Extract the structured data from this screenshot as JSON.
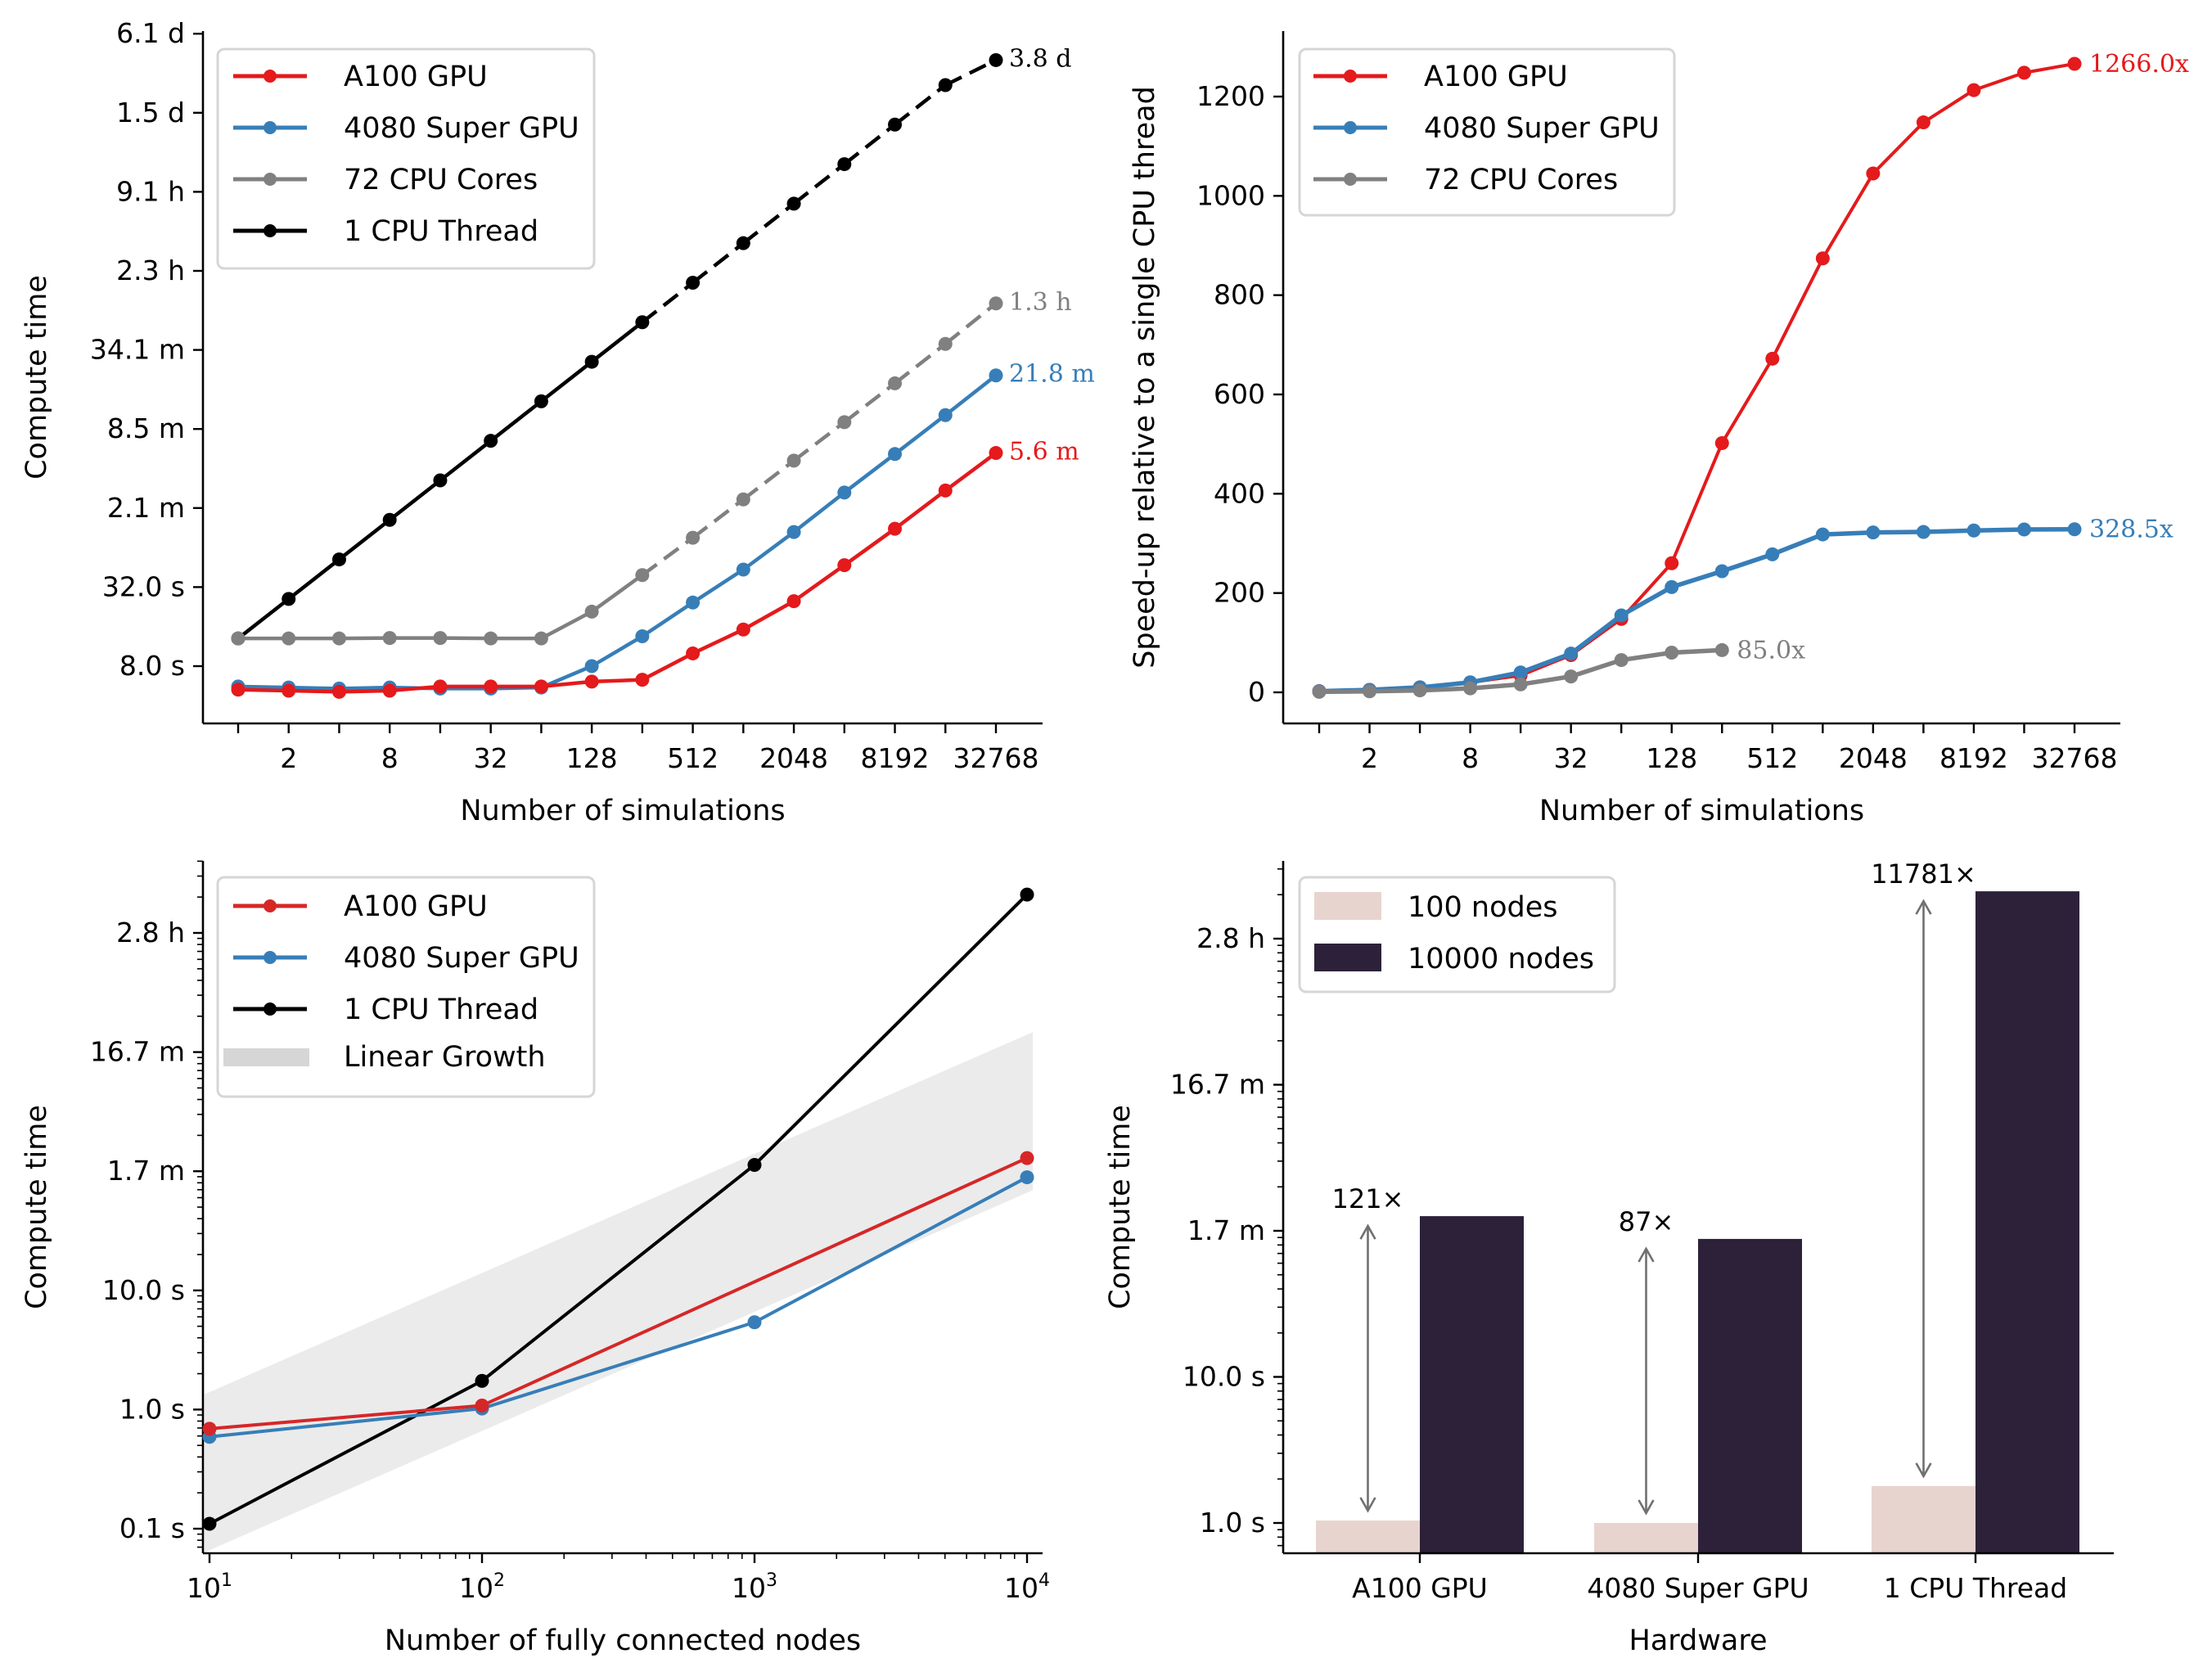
{
  "colors": {
    "a100": "#e41a1c",
    "rtx4080": "#377eb8",
    "cpu72": "#808080",
    "cpu1": "#000000",
    "a100_alt": "#d62728",
    "bar_100": "#e8d4cf",
    "bar_10000": "#2d2139",
    "band": "#ebebeb",
    "legend_border": "#d6d6d6",
    "arrow": "#707070"
  },
  "chart_data": [
    {
      "id": "compute-time-vs-simulations",
      "type": "line",
      "title": "",
      "xlabel": "Number of simulations",
      "ylabel": "Compute time",
      "xscale": "log2",
      "yscale": "log4",
      "x": [
        1,
        2,
        4,
        8,
        16,
        32,
        64,
        128,
        256,
        512,
        1024,
        2048,
        4096,
        8192,
        16384,
        32768
      ],
      "xticks": [
        2,
        8,
        32,
        128,
        512,
        2048,
        8192,
        32768
      ],
      "xtick_labels": [
        "2",
        "8",
        "32",
        "128",
        "512",
        "2048",
        "8192",
        "32768"
      ],
      "yticks_seconds": [
        8,
        32,
        128,
        512,
        2048,
        8192,
        32768,
        131072,
        524288
      ],
      "ytick_labels": [
        "8.0 s",
        "32.0 s",
        "2.1 m",
        "8.5 m",
        "34.1 m",
        "2.3 h",
        "9.1 h",
        "1.5 d",
        "6.1 d"
      ],
      "ylim_seconds": [
        3.2,
        560000
      ],
      "legend": {
        "location": "top-left",
        "entries": [
          "A100 GPU",
          "4080 Super GPU",
          "72 CPU Cores",
          "1 CPU Thread"
        ]
      },
      "series": [
        {
          "name": "A100 GPU",
          "color_key": "a100",
          "values": [
            5.3,
            5.2,
            5.1,
            5.2,
            5.6,
            5.6,
            5.6,
            6.1,
            6.3,
            10.0,
            15.2,
            25,
            47,
            89,
            174,
            336
          ],
          "solid_until": 32768,
          "end_label": "5.6 m"
        },
        {
          "name": "4080 Super GPU",
          "color_key": "rtx4080",
          "values": [
            5.6,
            5.5,
            5.4,
            5.5,
            5.4,
            5.4,
            5.5,
            8.0,
            13.5,
            24.4,
            43.5,
            84,
            168,
            330,
            653,
            1310
          ],
          "solid_until": 32768,
          "end_label": "21.8 m"
        },
        {
          "name": "72 CPU Cores",
          "color_key": "cpu72",
          "values": [
            13,
            13,
            13,
            13.1,
            13.1,
            13,
            13,
            20.8,
            39.5,
            76,
            149,
            294,
            577,
            1140,
            2275,
            4630
          ],
          "solid_until": 256,
          "end_label": "1.3 h"
        },
        {
          "name": "1 CPU Thread",
          "color_key": "cpu1",
          "values": [
            13,
            26,
            52,
            104,
            208,
            416,
            832,
            1664,
            3328,
            6656,
            13312,
            26624,
            53248,
            106496,
            212992,
            330000
          ],
          "solid_until": 256,
          "end_label": "3.8 d"
        }
      ]
    },
    {
      "id": "speedup-vs-simulations",
      "type": "line",
      "title": "",
      "xlabel": "Number of simulations",
      "ylabel": "Speed-up relative to a single CPU thread",
      "xscale": "log2",
      "yscale": "linear",
      "x": [
        1,
        2,
        4,
        8,
        16,
        32,
        64,
        128,
        256,
        512,
        1024,
        2048,
        4096,
        8192,
        16384,
        32768
      ],
      "xticks": [
        2,
        8,
        32,
        128,
        512,
        2048,
        8192,
        32768
      ],
      "xtick_labels": [
        "2",
        "8",
        "32",
        "128",
        "512",
        "2048",
        "8192",
        "32768"
      ],
      "yticks": [
        0,
        200,
        400,
        600,
        800,
        1000,
        1200
      ],
      "ytick_labels": [
        "0",
        "200",
        "400",
        "600",
        "800",
        "1000",
        "1200"
      ],
      "ylim": [
        -63,
        1330
      ],
      "legend": {
        "location": "top-left",
        "entries": [
          "A100 GPU",
          "4080 Super GPU",
          "72 CPU Cores"
        ]
      },
      "series": [
        {
          "name": "A100 GPU",
          "color_key": "a100",
          "values": [
            2.4,
            5,
            10,
            20,
            34,
            75,
            148,
            260,
            502,
            672,
            874,
            1045,
            1148,
            1213,
            1248,
            1266
          ],
          "end_label": "1266.0x"
        },
        {
          "name": "4080 Super GPU",
          "color_key": "rtx4080",
          "values": [
            2.3,
            5,
            10,
            20,
            40,
            78,
            155,
            212,
            244,
            278,
            318,
            322,
            323,
            326,
            328,
            328.5
          ],
          "end_label": "328.5x"
        },
        {
          "name": "72 CPU Cores",
          "color_key": "cpu72",
          "x": [
            1,
            2,
            4,
            8,
            16,
            32,
            64,
            128,
            256
          ],
          "values": [
            1,
            2,
            4,
            8,
            16,
            32,
            65,
            80,
            85
          ],
          "end_label": "85.0x"
        }
      ]
    },
    {
      "id": "compute-time-vs-nodes",
      "type": "line",
      "title": "",
      "xlabel": "Number of fully connected nodes",
      "ylabel": "Compute time",
      "xscale": "log10",
      "yscale": "log10",
      "xticks": [
        10,
        100,
        1000,
        10000
      ],
      "xtick_labels": [
        {
          "base": "10",
          "exp": "1"
        },
        {
          "base": "10",
          "exp": "2"
        },
        {
          "base": "10",
          "exp": "3"
        },
        {
          "base": "10",
          "exp": "4"
        }
      ],
      "xlim": [
        9.6,
        10500
      ],
      "yticks_seconds": [
        0.1,
        1,
        10,
        100,
        1000,
        10000
      ],
      "ytick_labels": [
        "0.1 s",
        "1.0 s",
        "10.0 s",
        "1.7 m",
        "16.7 m",
        "2.8 h"
      ],
      "ylim_seconds": [
        0.052,
        60000
      ],
      "legend": {
        "location": "top-left",
        "entries": [
          "A100 GPU",
          "4080 Super GPU",
          "1 CPU Thread",
          "Linear Growth"
        ]
      },
      "series": [
        {
          "name": "A100 GPU",
          "color_key": "a100_alt",
          "x": [
            10,
            100,
            10000
          ],
          "values": [
            0.69,
            1.08,
            129
          ]
        },
        {
          "name": "4080 Super GPU",
          "color_key": "rtx4080",
          "x": [
            10,
            100,
            1000,
            10000
          ],
          "values": [
            0.59,
            1.02,
            5.4,
            89
          ]
        },
        {
          "name": "1 CPU Thread",
          "color_key": "cpu1",
          "x": [
            10,
            100,
            1000,
            10000
          ],
          "values": [
            0.11,
            1.74,
            113,
            21000
          ]
        }
      ],
      "band": {
        "name": "Linear Growth",
        "color_key": "band",
        "x": [
          10,
          10000
        ],
        "lower": [
          0.066,
          66
        ],
        "upper": [
          1.4,
          1400
        ]
      }
    },
    {
      "id": "compute-time-by-hardware",
      "type": "bar",
      "title": "",
      "xlabel": "Hardware",
      "ylabel": "Compute time",
      "yscale": "log10",
      "categories": [
        "A100 GPU",
        "4080 Super GPU",
        "1 CPU Thread"
      ],
      "yticks_seconds": [
        1,
        10,
        100,
        1000,
        10000
      ],
      "ytick_labels": [
        "1.0 s",
        "10.0 s",
        "1.7 m",
        "16.7 m",
        "2.8 h"
      ],
      "ylim_seconds": [
        0.62,
        60000
      ],
      "legend": {
        "location": "top-left",
        "entries": [
          "100 nodes",
          "10000 nodes"
        ]
      },
      "series": [
        {
          "name": "100 nodes",
          "color_key": "bar_100",
          "values": [
            1.04,
            1.0,
            1.79
          ]
        },
        {
          "name": "10000 nodes",
          "color_key": "bar_10000",
          "values": [
            126,
            88,
            21100
          ]
        }
      ],
      "annotations": [
        "121×",
        "87×",
        "11781×"
      ]
    }
  ]
}
